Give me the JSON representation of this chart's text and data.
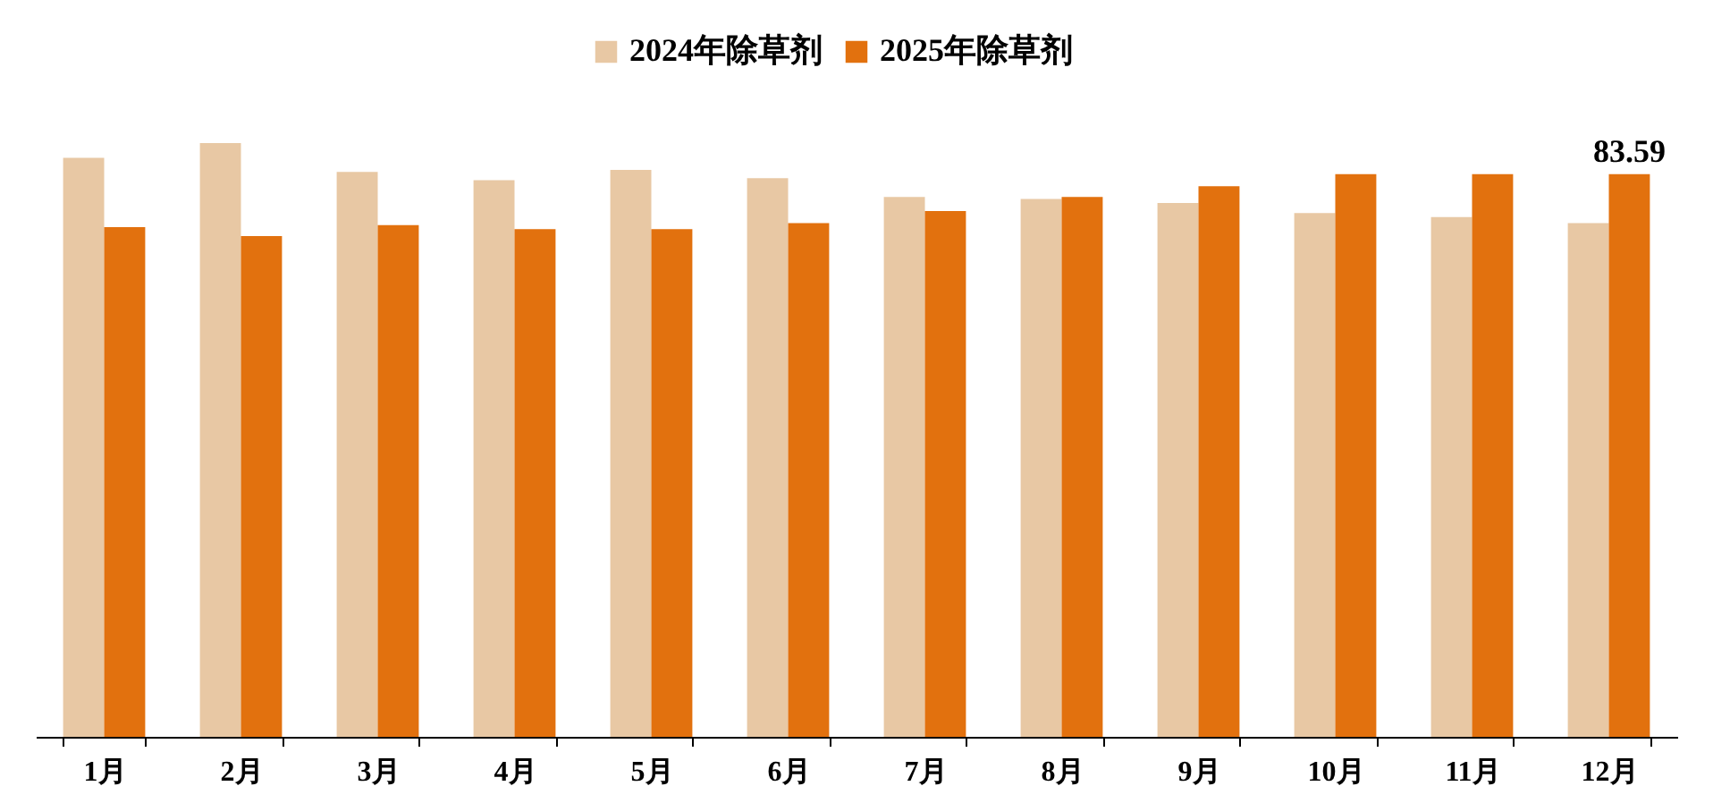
{
  "chart_data": {
    "type": "bar",
    "categories": [
      "1月",
      "2月",
      "3月",
      "4月",
      "5月",
      "6月",
      "7月",
      "8月",
      "9月",
      "10月",
      "11月",
      "12月"
    ],
    "series": [
      {
        "name": "2024年除草剂",
        "color": "#e8c8a4",
        "values": [
          86.0,
          88.2,
          83.9,
          82.7,
          84.2,
          83.0,
          80.2,
          79.9,
          79.3,
          77.8,
          77.2,
          76.3
        ]
      },
      {
        "name": "2025年除草剂",
        "color": "#e2710e",
        "values": [
          75.7,
          74.4,
          76.0,
          75.4,
          75.4,
          76.3,
          78.1,
          80.2,
          81.8,
          83.6,
          83.6,
          83.59
        ],
        "value_labels": [
          null,
          null,
          null,
          null,
          null,
          null,
          null,
          null,
          null,
          null,
          null,
          "83.59"
        ]
      }
    ],
    "legend": "top",
    "grid": false,
    "tick_labels": "x"
  }
}
